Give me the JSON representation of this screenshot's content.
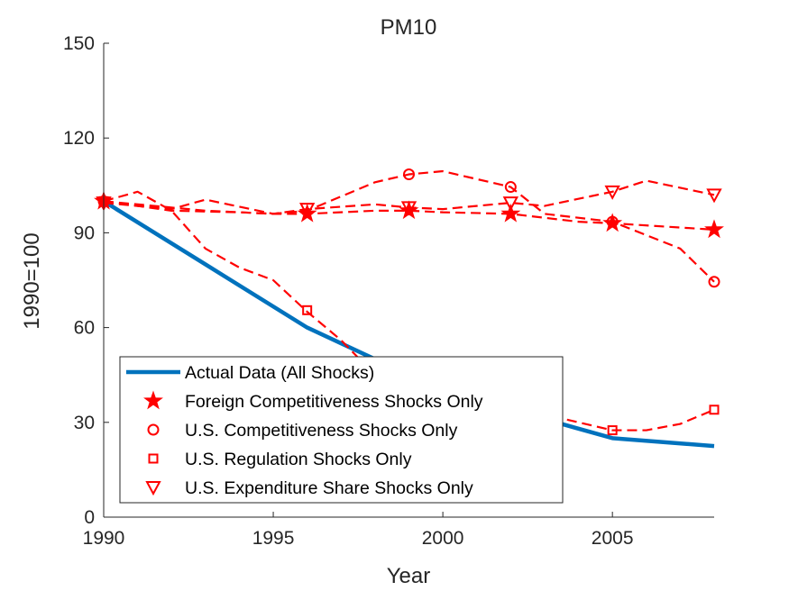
{
  "chart_data": {
    "type": "line",
    "title": "PM10",
    "xlabel": "Year",
    "ylabel": "1990=100",
    "xlim": [
      1990,
      2008
    ],
    "ylim": [
      0,
      150
    ],
    "xticks": [
      1990,
      1995,
      2000,
      2005
    ],
    "yticks": [
      0,
      30,
      60,
      90,
      120,
      150
    ],
    "legend_position": "bottom-left",
    "grid": false,
    "series": [
      {
        "name": "Actual Data (All Shocks)",
        "color": "#0072BD",
        "style": "solid",
        "marker": "none",
        "x": [
          1990,
          1993,
          1996,
          1998,
          2000,
          2002,
          2005,
          2008
        ],
        "y": [
          100,
          80,
          60,
          50,
          42,
          34,
          25,
          22.5
        ],
        "markers_x": [],
        "markers_y": []
      },
      {
        "name": "Foreign Competitiveness Shocks Only",
        "color": "#FF0000",
        "style": "dashed",
        "marker": "star",
        "x": [
          1990,
          1992,
          1994,
          1995,
          1996,
          1998,
          1999,
          2000,
          2002,
          2004,
          2005,
          2008
        ],
        "y": [
          100,
          97,
          96.5,
          96,
          96,
          97,
          97,
          96.5,
          96,
          93.5,
          93,
          91
        ],
        "markers_x": [
          1990,
          1996,
          1999,
          2002,
          2005,
          2008
        ],
        "markers_y": [
          100,
          96,
          97,
          96,
          93,
          91
        ]
      },
      {
        "name": "U.S. Competitiveness Shocks Only",
        "color": "#FF0000",
        "style": "dashed",
        "marker": "circle",
        "x": [
          1990,
          1993,
          1995,
          1996,
          1998,
          1999,
          2000,
          2002,
          2003,
          2005,
          2007,
          2008
        ],
        "y": [
          100,
          97,
          96,
          97,
          106,
          108.5,
          109.5,
          104.5,
          96,
          93.5,
          85,
          74.5
        ],
        "markers_x": [
          1990,
          1999,
          2002,
          2005,
          2008
        ],
        "markers_y": [
          100,
          108.5,
          104.5,
          93.5,
          74.5
        ]
      },
      {
        "name": "U.S. Regulation Shocks Only",
        "color": "#FF0000",
        "style": "dashed",
        "marker": "square",
        "x": [
          1990,
          1991,
          1992,
          1993,
          1994,
          1995,
          1996,
          1997,
          1998,
          1999,
          2000,
          2002,
          2005,
          2006,
          2007,
          2008
        ],
        "y": [
          100,
          103,
          97,
          85,
          79,
          75,
          65,
          56,
          45,
          43,
          41,
          35,
          27.5,
          27.5,
          29.5,
          34
        ],
        "markers_x": [
          1990,
          1996,
          2005,
          2008
        ],
        "markers_y": [
          100,
          65.5,
          27.5,
          34
        ]
      },
      {
        "name": "U.S. Expenditure Share Shocks Only",
        "color": "#FF0000",
        "style": "dashed",
        "marker": "triangle-down",
        "x": [
          1990,
          1992,
          1993,
          1995,
          1996,
          1998,
          1999,
          2000,
          2002,
          2003,
          2005,
          2006,
          2008
        ],
        "y": [
          99.5,
          97.5,
          100.5,
          96,
          97.5,
          99,
          98,
          97.5,
          99.5,
          98.5,
          103,
          106.5,
          102
        ],
        "markers_x": [
          1990,
          1996,
          1999,
          2002,
          2005,
          2008
        ],
        "markers_y": [
          99.5,
          97.5,
          98,
          99.5,
          103,
          102
        ]
      }
    ]
  }
}
